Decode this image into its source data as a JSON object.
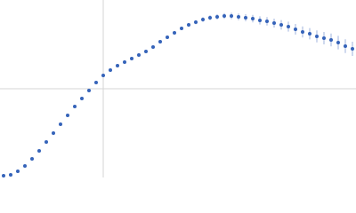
{
  "chart_data": {
    "type": "scatter",
    "color": "#3563b9",
    "error_color": "#9fb3de",
    "xlim": [
      0,
      1
    ],
    "ylim": [
      0,
      1
    ],
    "reference_lines": {
      "x": 0.29,
      "y": 0.5
    },
    "x": [
      0.01,
      0.03,
      0.05,
      0.07,
      0.09,
      0.11,
      0.13,
      0.15,
      0.17,
      0.19,
      0.21,
      0.23,
      0.25,
      0.27,
      0.29,
      0.31,
      0.33,
      0.35,
      0.37,
      0.39,
      0.41,
      0.43,
      0.45,
      0.47,
      0.49,
      0.51,
      0.53,
      0.55,
      0.57,
      0.59,
      0.61,
      0.63,
      0.65,
      0.67,
      0.69,
      0.71,
      0.73,
      0.75,
      0.77,
      0.79,
      0.81,
      0.83,
      0.85,
      0.87,
      0.89,
      0.91,
      0.93,
      0.95,
      0.97,
      0.99
    ],
    "values": [
      0.01,
      0.015,
      0.035,
      0.065,
      0.105,
      0.15,
      0.2,
      0.25,
      0.3,
      0.35,
      0.4,
      0.445,
      0.49,
      0.535,
      0.575,
      0.605,
      0.63,
      0.65,
      0.67,
      0.69,
      0.71,
      0.735,
      0.765,
      0.79,
      0.815,
      0.84,
      0.86,
      0.875,
      0.89,
      0.9,
      0.905,
      0.91,
      0.91,
      0.905,
      0.9,
      0.895,
      0.885,
      0.88,
      0.87,
      0.86,
      0.85,
      0.835,
      0.82,
      0.81,
      0.795,
      0.785,
      0.775,
      0.76,
      0.74,
      0.725
    ],
    "errors": [
      0.003,
      0.003,
      0.003,
      0.003,
      0.003,
      0.003,
      0.003,
      0.003,
      0.004,
      0.004,
      0.004,
      0.004,
      0.004,
      0.005,
      0.005,
      0.005,
      0.005,
      0.006,
      0.006,
      0.006,
      0.007,
      0.007,
      0.008,
      0.008,
      0.009,
      0.01,
      0.011,
      0.012,
      0.013,
      0.014,
      0.015,
      0.016,
      0.018,
      0.019,
      0.02,
      0.021,
      0.023,
      0.024,
      0.025,
      0.027,
      0.028,
      0.03,
      0.031,
      0.032,
      0.034,
      0.035,
      0.036,
      0.038,
      0.039,
      0.04
    ]
  }
}
